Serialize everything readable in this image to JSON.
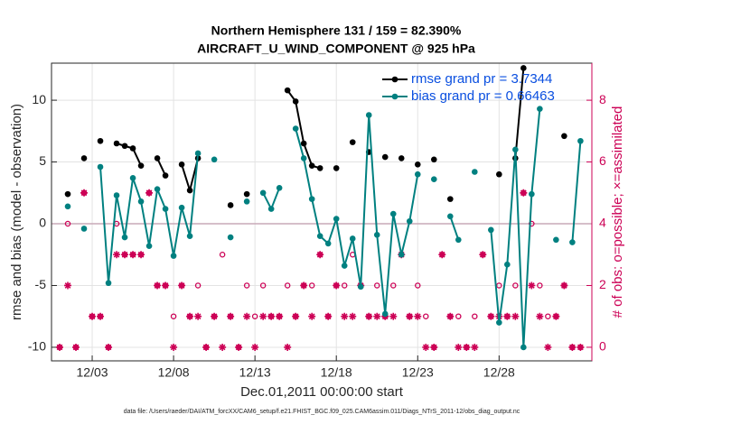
{
  "chart_data": {
    "type": "line",
    "title": "Northern Hemisphere 131 / 159 = 82.390%",
    "subtitle": "AIRCRAFT_U_WIND_COMPONENT @ 925 hPa",
    "xlabel": "Dec.01,2011 00:00:00 start",
    "ylabel": "rmse and bias (model - observation)",
    "y2label": "# of obs: o=possible; ×=assimilated",
    "footnote": "data file: /Users/raeder/DAI/ATM_forcXX/CAM6_setup/f.e21.FHIST_BGC.f09_025.CAM6assim.011/Diags_NTrS_2011-12/obs_diag_output.nc",
    "x": [
      0,
      0.5,
      1,
      1.5,
      2,
      2.5,
      3,
      3.5,
      4,
      4.5,
      5,
      5.5,
      6,
      6.5,
      7,
      7.5,
      8,
      8.5,
      9,
      9.5,
      10,
      10.5,
      11,
      11.5,
      12,
      12.5,
      13,
      13.5,
      14,
      14.5,
      15,
      15.5,
      16,
      16.5,
      17,
      17.5,
      18,
      18.5,
      19,
      19.5,
      20,
      20.5,
      21,
      21.5,
      22,
      22.5,
      23,
      23.5,
      24,
      24.5,
      25,
      25.5,
      26,
      26.5,
      27,
      27.5,
      28,
      28.5,
      29,
      29.5,
      30,
      30.5,
      31,
      31.5,
      32
    ],
    "series": [
      {
        "name": "rmse grand pr = 3.7344",
        "color": "#000000",
        "values": [
          null,
          2.4,
          null,
          5.3,
          null,
          6.7,
          null,
          6.5,
          6.3,
          6.1,
          4.7,
          null,
          5.3,
          3.9,
          null,
          4.8,
          2.7,
          5.3,
          null,
          null,
          null,
          1.5,
          null,
          2.4,
          null,
          null,
          null,
          null,
          10.8,
          9.9,
          6.5,
          4.7,
          4.5,
          null,
          4.5,
          null,
          6.6,
          null,
          5.8,
          null,
          5.4,
          null,
          5.3,
          null,
          4.8,
          null,
          5.2,
          null,
          2.0,
          null,
          null,
          null,
          null,
          null,
          4.0,
          null,
          5.3,
          12.6,
          null,
          null,
          null,
          null,
          7.1,
          null,
          null
        ]
      },
      {
        "name": "bias grand pr = 0.66463",
        "color": "#008080",
        "values": [
          null,
          1.4,
          null,
          -0.4,
          null,
          4.6,
          -4.8,
          2.3,
          -1.1,
          3.7,
          1.8,
          -1.8,
          2.8,
          1.2,
          -2.6,
          1.3,
          -1.0,
          5.7,
          null,
          5.2,
          null,
          -1.1,
          null,
          1.8,
          null,
          2.5,
          1.2,
          2.9,
          null,
          7.7,
          5.3,
          2.0,
          -1.0,
          -1.6,
          0.4,
          -3.4,
          -1.2,
          -5.1,
          8.8,
          -0.9,
          -7.3,
          0.8,
          -2.5,
          0.2,
          4.0,
          null,
          3.6,
          null,
          0.6,
          -1.3,
          null,
          4.2,
          null,
          -0.5,
          -8.0,
          -3.3,
          6.0,
          -10.0,
          2.4,
          9.3,
          null,
          -1.3,
          null,
          -1.5,
          6.7
        ]
      }
    ],
    "y2_series": [
      {
        "name": "possible",
        "marker": "circle",
        "color": "#cc0055",
        "values": [
          0,
          4,
          0,
          5,
          1,
          1,
          0,
          4,
          3,
          3,
          3,
          5,
          2,
          2,
          1,
          2,
          1,
          2,
          0,
          1,
          3,
          1,
          0,
          2,
          1,
          2,
          1,
          1,
          2,
          1,
          2,
          2,
          3,
          1,
          2,
          2,
          3,
          2,
          1,
          2,
          1,
          2,
          3,
          1,
          2,
          1,
          0,
          3,
          1,
          1,
          0,
          1,
          3,
          1,
          2,
          1,
          2,
          5,
          4,
          2,
          1,
          1,
          2,
          0,
          0
        ]
      },
      {
        "name": "assimilated",
        "marker": "star",
        "color": "#cc0055",
        "values": [
          0,
          2,
          0,
          5,
          1,
          1,
          0,
          3,
          3,
          3,
          3,
          5,
          2,
          2,
          0,
          2,
          1,
          1,
          0,
          1,
          0,
          1,
          0,
          1,
          0,
          1,
          1,
          1,
          0,
          1,
          2,
          1,
          3,
          1,
          2,
          1,
          1,
          2,
          1,
          1,
          1,
          1,
          3,
          1,
          1,
          0,
          0,
          3,
          1,
          0,
          0,
          0,
          3,
          1,
          1,
          1,
          1,
          5,
          2,
          1,
          0,
          1,
          2,
          0,
          0
        ]
      }
    ],
    "xlim": [
      -0.5,
      32.7
    ],
    "xticks": [
      {
        "value": 2,
        "label": "12/03"
      },
      {
        "value": 7,
        "label": "12/08"
      },
      {
        "value": 12,
        "label": "12/13"
      },
      {
        "value": 17,
        "label": "12/18"
      },
      {
        "value": 22,
        "label": "12/23"
      },
      {
        "value": 27,
        "label": "12/28"
      }
    ],
    "ylim": [
      -11.1,
      13.0
    ],
    "yticks": [
      -10,
      -5,
      0,
      5,
      10
    ],
    "y2lim": [
      -0.44,
      9.2
    ],
    "y2ticks": [
      0,
      2,
      4,
      6,
      8
    ],
    "y2_color": "#cc0055",
    "grid": true,
    "zero_line": true,
    "legend": "northeast",
    "legend_text_color": "#0a4fe0"
  }
}
